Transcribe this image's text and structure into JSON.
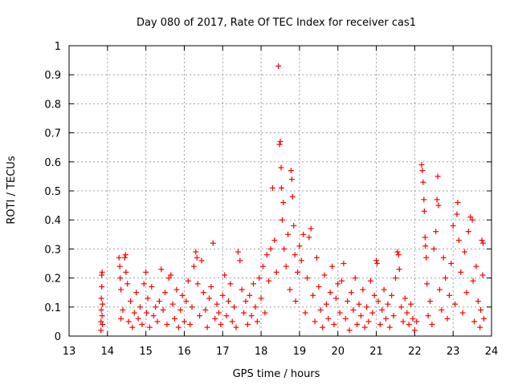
{
  "chart_data": {
    "type": "scatter",
    "title": "Day 080 of 2017, Rate Of TEC Index for receiver cas1",
    "xlabel": "GPS time / hours",
    "ylabel": "ROTI / TECUs",
    "xlim": [
      13,
      24
    ],
    "ylim": [
      0,
      1
    ],
    "xticks": [
      "13",
      "14",
      "15",
      "16",
      "17",
      "18",
      "19",
      "20",
      "21",
      "22",
      "23",
      "24"
    ],
    "yticks": [
      "0",
      "0.1",
      "0.2",
      "0.3",
      "0.4",
      "0.5",
      "0.6",
      "0.7",
      "0.8",
      "0.9",
      "1"
    ],
    "grid": true,
    "marker": "+",
    "series_color": "#ff0000",
    "points": [
      [
        13.83,
        0.02
      ],
      [
        13.83,
        0.05
      ],
      [
        13.84,
        0.09
      ],
      [
        13.84,
        0.13
      ],
      [
        13.85,
        0.17
      ],
      [
        13.85,
        0.21
      ],
      [
        13.86,
        0.22
      ],
      [
        13.86,
        0.07
      ],
      [
        13.87,
        0.11
      ],
      [
        13.87,
        0.04
      ],
      [
        14.3,
        0.27
      ],
      [
        14.32,
        0.24
      ],
      [
        14.33,
        0.2
      ],
      [
        14.35,
        0.16
      ],
      [
        14.35,
        0.06
      ],
      [
        14.4,
        0.09
      ],
      [
        14.45,
        0.27
      ],
      [
        14.47,
        0.28
      ],
      [
        14.48,
        0.22
      ],
      [
        14.52,
        0.18
      ],
      [
        14.55,
        0.05
      ],
      [
        14.6,
        0.12
      ],
      [
        14.65,
        0.03
      ],
      [
        14.7,
        0.08
      ],
      [
        14.75,
        0.15
      ],
      [
        14.8,
        0.06
      ],
      [
        14.85,
        0.1
      ],
      [
        14.9,
        0.04
      ],
      [
        14.95,
        0.18
      ],
      [
        15.0,
        0.22
      ],
      [
        15.02,
        0.08
      ],
      [
        15.05,
        0.13
      ],
      [
        15.1,
        0.03
      ],
      [
        15.15,
        0.17
      ],
      [
        15.2,
        0.07
      ],
      [
        15.25,
        0.1
      ],
      [
        15.3,
        0.05
      ],
      [
        15.35,
        0.12
      ],
      [
        15.4,
        0.23
      ],
      [
        15.45,
        0.09
      ],
      [
        15.5,
        0.15
      ],
      [
        15.55,
        0.04
      ],
      [
        15.6,
        0.2
      ],
      [
        15.65,
        0.21
      ],
      [
        15.7,
        0.11
      ],
      [
        15.75,
        0.06
      ],
      [
        15.8,
        0.16
      ],
      [
        15.85,
        0.03
      ],
      [
        15.9,
        0.09
      ],
      [
        15.95,
        0.14
      ],
      [
        16.0,
        0.05
      ],
      [
        16.05,
        0.12
      ],
      [
        16.1,
        0.19
      ],
      [
        16.15,
        0.04
      ],
      [
        16.2,
        0.1
      ],
      [
        16.25,
        0.24
      ],
      [
        16.3,
        0.29
      ],
      [
        16.33,
        0.27
      ],
      [
        16.35,
        0.18
      ],
      [
        16.4,
        0.07
      ],
      [
        16.45,
        0.26
      ],
      [
        16.5,
        0.15
      ],
      [
        16.55,
        0.09
      ],
      [
        16.6,
        0.03
      ],
      [
        16.65,
        0.13
      ],
      [
        16.7,
        0.17
      ],
      [
        16.75,
        0.32
      ],
      [
        16.8,
        0.06
      ],
      [
        16.85,
        0.11
      ],
      [
        16.9,
        0.08
      ],
      [
        16.95,
        0.04
      ],
      [
        17.0,
        0.14
      ],
      [
        17.05,
        0.21
      ],
      [
        17.1,
        0.07
      ],
      [
        17.15,
        0.12
      ],
      [
        17.2,
        0.18
      ],
      [
        17.25,
        0.05
      ],
      [
        17.3,
        0.1
      ],
      [
        17.35,
        0.03
      ],
      [
        17.4,
        0.29
      ],
      [
        17.45,
        0.26
      ],
      [
        17.5,
        0.16
      ],
      [
        17.55,
        0.08
      ],
      [
        17.6,
        0.12
      ],
      [
        17.65,
        0.04
      ],
      [
        17.7,
        0.14
      ],
      [
        17.75,
        0.07
      ],
      [
        17.8,
        0.18
      ],
      [
        17.85,
        0.1
      ],
      [
        17.9,
        0.05
      ],
      [
        17.95,
        0.2
      ],
      [
        18.0,
        0.13
      ],
      [
        18.05,
        0.24
      ],
      [
        18.1,
        0.08
      ],
      [
        18.15,
        0.28
      ],
      [
        18.2,
        0.19
      ],
      [
        18.25,
        0.3
      ],
      [
        18.3,
        0.51
      ],
      [
        18.35,
        0.33
      ],
      [
        18.4,
        0.22
      ],
      [
        18.45,
        0.93
      ],
      [
        18.48,
        0.66
      ],
      [
        18.5,
        0.67
      ],
      [
        18.52,
        0.58
      ],
      [
        18.53,
        0.51
      ],
      [
        18.55,
        0.4
      ],
      [
        18.58,
        0.46
      ],
      [
        18.6,
        0.3
      ],
      [
        18.65,
        0.24
      ],
      [
        18.7,
        0.35
      ],
      [
        18.75,
        0.16
      ],
      [
        18.78,
        0.57
      ],
      [
        18.8,
        0.54
      ],
      [
        18.82,
        0.48
      ],
      [
        18.85,
        0.38
      ],
      [
        18.88,
        0.28
      ],
      [
        18.9,
        0.12
      ],
      [
        18.95,
        0.22
      ],
      [
        19.0,
        0.31
      ],
      [
        19.05,
        0.26
      ],
      [
        19.1,
        0.35
      ],
      [
        19.15,
        0.08
      ],
      [
        19.2,
        0.2
      ],
      [
        19.25,
        0.34
      ],
      [
        19.3,
        0.37
      ],
      [
        19.35,
        0.14
      ],
      [
        19.4,
        0.05
      ],
      [
        19.45,
        0.27
      ],
      [
        19.5,
        0.17
      ],
      [
        19.55,
        0.09
      ],
      [
        19.6,
        0.03
      ],
      [
        19.65,
        0.21
      ],
      [
        19.7,
        0.11
      ],
      [
        19.75,
        0.06
      ],
      [
        19.8,
        0.15
      ],
      [
        19.85,
        0.24
      ],
      [
        19.9,
        0.04
      ],
      [
        19.95,
        0.13
      ],
      [
        20.0,
        0.18
      ],
      [
        20.05,
        0.08
      ],
      [
        20.1,
        0.19
      ],
      [
        20.15,
        0.25
      ],
      [
        20.2,
        0.06
      ],
      [
        20.25,
        0.12
      ],
      [
        20.3,
        0.02
      ],
      [
        20.35,
        0.15
      ],
      [
        20.4,
        0.09
      ],
      [
        20.45,
        0.2
      ],
      [
        20.5,
        0.04
      ],
      [
        20.55,
        0.11
      ],
      [
        20.6,
        0.07
      ],
      [
        20.65,
        0.16
      ],
      [
        20.7,
        0.03
      ],
      [
        20.75,
        0.1
      ],
      [
        20.8,
        0.05
      ],
      [
        20.85,
        0.19
      ],
      [
        20.9,
        0.08
      ],
      [
        20.95,
        0.14
      ],
      [
        21.0,
        0.26
      ],
      [
        21.02,
        0.25
      ],
      [
        21.05,
        0.12
      ],
      [
        21.1,
        0.04
      ],
      [
        21.15,
        0.09
      ],
      [
        21.2,
        0.16
      ],
      [
        21.25,
        0.06
      ],
      [
        21.3,
        0.11
      ],
      [
        21.35,
        0.03
      ],
      [
        21.4,
        0.14
      ],
      [
        21.45,
        0.07
      ],
      [
        21.5,
        0.2
      ],
      [
        21.55,
        0.29
      ],
      [
        21.58,
        0.28
      ],
      [
        21.6,
        0.23
      ],
      [
        21.65,
        0.1
      ],
      [
        21.7,
        0.05
      ],
      [
        21.75,
        0.13
      ],
      [
        21.8,
        0.08
      ],
      [
        21.85,
        0.04
      ],
      [
        21.9,
        0.11
      ],
      [
        21.95,
        0.06
      ],
      [
        22.0,
        0.02
      ],
      [
        22.05,
        0.05
      ],
      [
        22.18,
        0.59
      ],
      [
        22.2,
        0.57
      ],
      [
        22.22,
        0.53
      ],
      [
        22.24,
        0.47
      ],
      [
        22.25,
        0.43
      ],
      [
        22.27,
        0.34
      ],
      [
        22.28,
        0.31
      ],
      [
        22.3,
        0.27
      ],
      [
        22.32,
        0.18
      ],
      [
        22.35,
        0.07
      ],
      [
        22.4,
        0.12
      ],
      [
        22.45,
        0.04
      ],
      [
        22.5,
        0.3
      ],
      [
        22.55,
        0.36
      ],
      [
        22.58,
        0.47
      ],
      [
        22.6,
        0.55
      ],
      [
        22.62,
        0.45
      ],
      [
        22.65,
        0.16
      ],
      [
        22.7,
        0.09
      ],
      [
        22.75,
        0.27
      ],
      [
        22.8,
        0.2
      ],
      [
        22.85,
        0.06
      ],
      [
        22.9,
        0.14
      ],
      [
        22.95,
        0.25
      ],
      [
        23.0,
        0.38
      ],
      [
        23.05,
        0.11
      ],
      [
        23.1,
        0.42
      ],
      [
        23.12,
        0.46
      ],
      [
        23.15,
        0.33
      ],
      [
        23.2,
        0.22
      ],
      [
        23.25,
        0.08
      ],
      [
        23.3,
        0.29
      ],
      [
        23.35,
        0.15
      ],
      [
        23.4,
        0.36
      ],
      [
        23.45,
        0.41
      ],
      [
        23.5,
        0.4
      ],
      [
        23.52,
        0.19
      ],
      [
        23.55,
        0.05
      ],
      [
        23.6,
        0.24
      ],
      [
        23.65,
        0.12
      ],
      [
        23.7,
        0.03
      ],
      [
        23.72,
        0.09
      ],
      [
        23.75,
        0.33
      ],
      [
        23.78,
        0.32
      ],
      [
        23.8,
        0.06
      ],
      [
        23.77,
        0.21
      ]
    ]
  }
}
